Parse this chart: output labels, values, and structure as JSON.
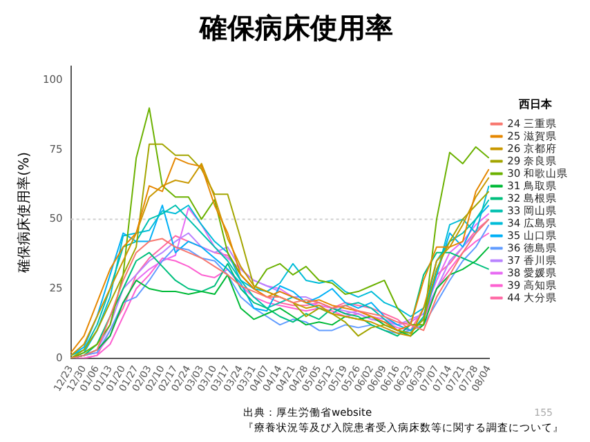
{
  "chart_data": {
    "type": "line",
    "title": "確保病床使用率",
    "ylabel": "確保病床使用率(%)",
    "legend_title": "西日本",
    "legend": "right",
    "grid": false,
    "marker": "none",
    "line_style": "solid",
    "categories": [
      "12/23",
      "12/30",
      "01/06",
      "01/13",
      "01/20",
      "01/27",
      "02/03",
      "02/10",
      "02/17",
      "02/24",
      "03/03",
      "03/10",
      "03/17",
      "03/24",
      "03/31",
      "04/07",
      "04/14",
      "04/21",
      "04/28",
      "05/05",
      "05/12",
      "05/19",
      "05/26",
      "06/02",
      "06/09",
      "06/16",
      "06/23",
      "06/30",
      "07/07",
      "07/14",
      "07/21",
      "07/28",
      "08/04"
    ],
    "ylim": [
      0,
      105
    ],
    "yticks": [
      0,
      25,
      50,
      75,
      100
    ],
    "ref_lines": [
      {
        "axis": "y",
        "value": 50,
        "color": "#d0d0d0",
        "line_style": "dotted"
      }
    ],
    "annotations": [
      "出典：厚生労働省website",
      "『療養状況等及び入院患者受入病床数等に関する調査について』",
      "155"
    ],
    "series": [
      {
        "name": "24 三重県",
        "color": "#f8766d",
        "values": [
          0,
          1,
          3,
          15,
          28,
          38,
          42,
          43,
          40,
          38,
          36,
          33,
          30,
          26,
          24,
          22,
          22,
          20,
          21,
          20,
          18,
          19,
          17,
          16,
          15,
          13,
          12,
          10,
          22,
          30,
          38,
          45,
          50
        ]
      },
      {
        "name": "25 滋賀県",
        "color": "#e58700",
        "values": [
          2,
          8,
          20,
          32,
          40,
          45,
          62,
          60,
          72,
          70,
          69,
          55,
          45,
          30,
          25,
          22,
          24,
          22,
          20,
          21,
          19,
          18,
          17,
          15,
          13,
          10,
          12,
          28,
          40,
          40,
          42,
          60,
          68
        ]
      },
      {
        "name": "26 京都府",
        "color": "#c99800",
        "values": [
          1,
          5,
          15,
          25,
          35,
          45,
          58,
          62,
          64,
          63,
          70,
          58,
          43,
          33,
          26,
          24,
          22,
          20,
          18,
          19,
          16,
          15,
          14,
          13,
          11,
          9,
          8,
          18,
          35,
          40,
          48,
          58,
          65
        ]
      },
      {
        "name": "29 奈良県",
        "color": "#a3a500",
        "values": [
          0,
          3,
          10,
          20,
          30,
          40,
          77,
          77,
          73,
          73,
          68,
          59,
          59,
          43,
          26,
          24,
          22,
          20,
          15,
          18,
          16,
          13,
          8,
          11,
          12,
          10,
          9,
          14,
          32,
          42,
          50,
          55,
          60
        ]
      },
      {
        "name": "30 和歌山県",
        "color": "#6bb100",
        "values": [
          0,
          2,
          5,
          12,
          30,
          72,
          90,
          62,
          58,
          58,
          50,
          57,
          38,
          30,
          25,
          32,
          34,
          30,
          33,
          28,
          27,
          23,
          24,
          26,
          28,
          18,
          12,
          12,
          50,
          74,
          70,
          76,
          72
        ]
      },
      {
        "name": "31 鳥取県",
        "color": "#00ba38",
        "values": [
          0,
          1,
          3,
          8,
          20,
          28,
          25,
          24,
          24,
          23,
          24,
          23,
          30,
          18,
          14,
          16,
          18,
          15,
          12,
          13,
          12,
          15,
          14,
          15,
          12,
          10,
          8,
          12,
          25,
          30,
          32,
          35,
          40
        ]
      },
      {
        "name": "32 島根県",
        "color": "#00bf7d",
        "values": [
          0,
          1,
          5,
          15,
          25,
          35,
          38,
          33,
          28,
          25,
          24,
          26,
          34,
          25,
          20,
          18,
          15,
          13,
          16,
          14,
          18,
          16,
          15,
          12,
          10,
          8,
          12,
          30,
          38,
          38,
          36,
          34,
          32
        ]
      },
      {
        "name": "33 岡山県",
        "color": "#00c0af",
        "values": [
          1,
          3,
          12,
          25,
          40,
          42,
          50,
          52,
          55,
          50,
          45,
          40,
          35,
          28,
          22,
          18,
          20,
          22,
          20,
          18,
          16,
          19,
          20,
          18,
          14,
          10,
          9,
          15,
          35,
          42,
          45,
          50,
          57
        ]
      },
      {
        "name": "34 広島県",
        "color": "#00bcd8",
        "values": [
          0,
          2,
          10,
          22,
          44,
          45,
          46,
          53,
          52,
          55,
          48,
          42,
          38,
          28,
          25,
          24,
          27,
          34,
          28,
          27,
          28,
          24,
          22,
          24,
          20,
          18,
          15,
          18,
          30,
          48,
          50,
          45,
          62
        ]
      },
      {
        "name": "35 山口県",
        "color": "#00b0f6",
        "values": [
          1,
          4,
          15,
          30,
          45,
          42,
          42,
          55,
          38,
          42,
          40,
          36,
          32,
          27,
          18,
          17,
          26,
          24,
          20,
          22,
          25,
          20,
          18,
          20,
          15,
          12,
          10,
          14,
          30,
          45,
          40,
          50,
          55
        ]
      },
      {
        "name": "36 徳島県",
        "color": "#619cff",
        "values": [
          0,
          1,
          2,
          10,
          20,
          22,
          28,
          35,
          40,
          39,
          36,
          35,
          30,
          22,
          18,
          15,
          12,
          14,
          13,
          10,
          10,
          12,
          11,
          12,
          10,
          9,
          10,
          12,
          20,
          28,
          35,
          40,
          48
        ]
      },
      {
        "name": "37 香川県",
        "color": "#b983ff",
        "values": [
          0,
          1,
          3,
          12,
          25,
          30,
          35,
          38,
          42,
          45,
          40,
          38,
          40,
          32,
          28,
          26,
          24,
          22,
          22,
          20,
          18,
          17,
          16,
          14,
          13,
          12,
          14,
          16,
          25,
          35,
          40,
          45,
          50
        ]
      },
      {
        "name": "38 愛媛県",
        "color": "#e76bf3",
        "values": [
          0,
          1,
          2,
          8,
          20,
          28,
          32,
          35,
          37,
          54,
          48,
          40,
          36,
          32,
          28,
          26,
          25,
          22,
          20,
          19,
          18,
          16,
          17,
          15,
          14,
          12,
          13,
          16,
          28,
          38,
          42,
          48,
          52
        ]
      },
      {
        "name": "39 高知県",
        "color": "#fd61d1",
        "values": [
          0,
          0,
          1,
          5,
          15,
          25,
          30,
          36,
          35,
          33,
          30,
          29,
          32,
          26,
          22,
          20,
          19,
          18,
          17,
          18,
          17,
          15,
          16,
          14,
          13,
          11,
          10,
          14,
          25,
          32,
          38,
          42,
          45
        ]
      },
      {
        "name": "44 大分県",
        "color": "#ff67a4",
        "values": [
          0,
          0,
          1,
          10,
          18,
          30,
          36,
          40,
          44,
          42,
          40,
          38,
          37,
          30,
          25,
          22,
          20,
          19,
          19,
          20,
          18,
          20,
          19,
          18,
          16,
          14,
          10,
          18,
          30,
          34,
          40,
          46,
          50
        ]
      }
    ]
  }
}
